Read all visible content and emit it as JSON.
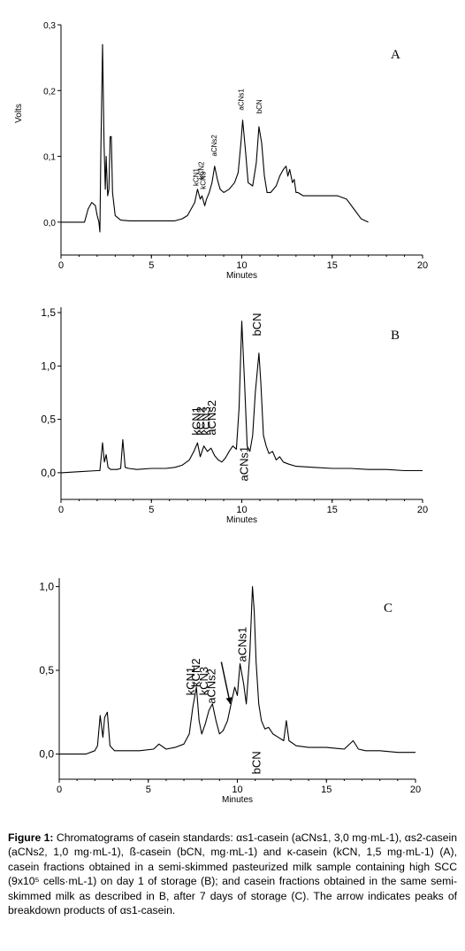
{
  "chart_data": [
    {
      "type": "line",
      "panel_label": "A",
      "xlabel": "Minutes",
      "ylabel": "Volts",
      "xlim": [
        0,
        20
      ],
      "ylim": [
        -0.05,
        0.3
      ],
      "x_ticks": [
        "0",
        "5",
        "10",
        "15",
        "20"
      ],
      "y_ticks": [
        "0,0",
        "0,1",
        "0,2",
        "0,3"
      ],
      "annotations": [
        {
          "text": "kCN1",
          "x": 7.6,
          "y": 0.055
        },
        {
          "text": "kCN2",
          "x": 7.9,
          "y": 0.065
        },
        {
          "text": "kCN3",
          "x": 8.0,
          "y": 0.05
        },
        {
          "text": "aCNs2",
          "x": 8.6,
          "y": 0.1
        },
        {
          "text": "aCNs1",
          "x": 10.1,
          "y": 0.17
        },
        {
          "text": "bCN",
          "x": 11.1,
          "y": 0.165
        }
      ],
      "series": [
        {
          "x": [
            0,
            1.3,
            1.5,
            1.7,
            1.9,
            2.0,
            2.1,
            2.15,
            2.2,
            2.3,
            2.38,
            2.45,
            2.5,
            2.58,
            2.65,
            2.72,
            2.78,
            2.85,
            3.0,
            3.3,
            3.8,
            4.5,
            5.5,
            6.3,
            6.7,
            7.0,
            7.2,
            7.4,
            7.55,
            7.7,
            7.8,
            7.95,
            8.05,
            8.2,
            8.35,
            8.5,
            8.65,
            8.8,
            9.0,
            9.3,
            9.6,
            9.8,
            9.95,
            10.05,
            10.2,
            10.35,
            10.6,
            10.8,
            10.95,
            11.1,
            11.25,
            11.4,
            11.6,
            11.9,
            12.1,
            12.3,
            12.45,
            12.55,
            12.65,
            12.8,
            12.9,
            13.0,
            13.1,
            13.4,
            13.7,
            14.5,
            15.3,
            15.8,
            16.2,
            16.6,
            17.0
          ],
          "y": [
            0.0,
            0.0,
            0.02,
            0.03,
            0.025,
            0.01,
            0.0,
            -0.015,
            0.1,
            0.27,
            0.12,
            0.05,
            0.1,
            0.04,
            0.05,
            0.13,
            0.13,
            0.045,
            0.01,
            0.003,
            0.002,
            0.002,
            0.002,
            0.002,
            0.005,
            0.01,
            0.02,
            0.03,
            0.05,
            0.035,
            0.04,
            0.025,
            0.035,
            0.045,
            0.06,
            0.085,
            0.065,
            0.05,
            0.045,
            0.05,
            0.06,
            0.075,
            0.12,
            0.155,
            0.11,
            0.06,
            0.055,
            0.09,
            0.145,
            0.12,
            0.07,
            0.045,
            0.045,
            0.055,
            0.07,
            0.08,
            0.085,
            0.07,
            0.08,
            0.06,
            0.065,
            0.045,
            0.045,
            0.04,
            0.04,
            0.04,
            0.04,
            0.035,
            0.02,
            0.005,
            0.0
          ]
        }
      ]
    },
    {
      "type": "line",
      "panel_label": "B",
      "xlabel": "Minutes",
      "xlim": [
        0,
        20
      ],
      "ylim": [
        -0.25,
        1.55
      ],
      "x_ticks": [
        "0",
        "5",
        "10",
        "15",
        "20"
      ],
      "y_ticks": [
        "0,0",
        "0,5",
        "1,0",
        "1,5"
      ],
      "annotations": [
        {
          "text": "kCN1",
          "x": 7.7,
          "y": 0.35
        },
        {
          "text": "kCN2",
          "x": 7.95,
          "y": 0.35
        },
        {
          "text": "kCN3",
          "x": 8.25,
          "y": 0.35
        },
        {
          "text": "aCNs2",
          "x": 8.55,
          "y": 0.35
        },
        {
          "text": "aCNs1",
          "x": 10.35,
          "y": -0.08
        },
        {
          "text": "bCN",
          "x": 11.05,
          "y": 1.28
        }
      ],
      "series": [
        {
          "x": [
            0,
            1.0,
            2.0,
            2.15,
            2.3,
            2.4,
            2.5,
            2.6,
            2.75,
            2.9,
            3.1,
            3.3,
            3.42,
            3.55,
            3.75,
            4.2,
            5.0,
            5.8,
            6.3,
            6.7,
            7.1,
            7.35,
            7.55,
            7.7,
            7.9,
            8.1,
            8.3,
            8.5,
            8.7,
            8.9,
            9.1,
            9.3,
            9.5,
            9.7,
            9.85,
            10.0,
            10.15,
            10.3,
            10.45,
            10.6,
            10.75,
            10.95,
            11.05,
            11.2,
            11.35,
            11.5,
            11.7,
            11.9,
            12.1,
            12.3,
            12.6,
            13.0,
            14.0,
            15.0,
            16.0,
            17.0,
            18.0,
            19.0,
            20.0
          ],
          "y": [
            0.0,
            0.01,
            0.02,
            0.02,
            0.28,
            0.1,
            0.17,
            0.05,
            0.03,
            0.03,
            0.03,
            0.04,
            0.31,
            0.05,
            0.04,
            0.03,
            0.04,
            0.04,
            0.05,
            0.07,
            0.12,
            0.2,
            0.28,
            0.15,
            0.25,
            0.2,
            0.23,
            0.16,
            0.12,
            0.1,
            0.14,
            0.2,
            0.25,
            0.22,
            0.6,
            1.42,
            0.85,
            0.25,
            0.2,
            0.35,
            0.75,
            1.12,
            0.85,
            0.35,
            0.25,
            0.18,
            0.2,
            0.12,
            0.15,
            0.1,
            0.08,
            0.06,
            0.05,
            0.04,
            0.04,
            0.03,
            0.03,
            0.02,
            0.02
          ]
        }
      ]
    },
    {
      "type": "line",
      "panel_label": "C",
      "xlabel": "Minutes",
      "xlim": [
        0,
        20
      ],
      "ylim": [
        -0.15,
        1.05
      ],
      "x_ticks": [
        "0",
        "5",
        "10",
        "15",
        "20"
      ],
      "y_ticks": [
        "0,0",
        "0,5",
        "1,0"
      ],
      "annotations": [
        {
          "text": "kCN1",
          "x": 7.6,
          "y": 0.35
        },
        {
          "text": "kCN2",
          "x": 7.9,
          "y": 0.4
        },
        {
          "text": "kCN3",
          "x": 8.35,
          "y": 0.35
        },
        {
          "text": "aCNs2",
          "x": 8.75,
          "y": 0.3
        },
        {
          "text": "aCNs1",
          "x": 10.5,
          "y": 0.55
        },
        {
          "text": "bCN",
          "x": 11.3,
          "y": -0.12
        }
      ],
      "series": [
        {
          "x": [
            0,
            1.5,
            2.0,
            2.15,
            2.3,
            2.45,
            2.55,
            2.7,
            2.85,
            3.1,
            3.5,
            4.5,
            5.3,
            5.6,
            6.0,
            6.5,
            7.0,
            7.3,
            7.5,
            7.7,
            7.85,
            8.0,
            8.2,
            8.4,
            8.6,
            8.8,
            9.0,
            9.2,
            9.45,
            9.65,
            9.85,
            10.0,
            10.15,
            10.35,
            10.5,
            10.7,
            10.85,
            10.95,
            11.05,
            11.2,
            11.35,
            11.55,
            11.75,
            12.0,
            12.3,
            12.6,
            12.75,
            12.9,
            13.3,
            14.0,
            15.0,
            16.0,
            16.5,
            16.8,
            17.2,
            18.0,
            19.0,
            20.0
          ],
          "y": [
            0.0,
            0.0,
            0.02,
            0.05,
            0.23,
            0.1,
            0.22,
            0.25,
            0.05,
            0.02,
            0.02,
            0.02,
            0.03,
            0.06,
            0.03,
            0.04,
            0.06,
            0.12,
            0.28,
            0.4,
            0.2,
            0.12,
            0.18,
            0.26,
            0.3,
            0.2,
            0.12,
            0.14,
            0.2,
            0.3,
            0.4,
            0.35,
            0.54,
            0.42,
            0.3,
            0.6,
            1.0,
            0.85,
            0.55,
            0.3,
            0.2,
            0.15,
            0.16,
            0.12,
            0.1,
            0.08,
            0.2,
            0.08,
            0.05,
            0.04,
            0.04,
            0.03,
            0.08,
            0.03,
            0.02,
            0.02,
            0.01,
            0.01
          ]
        }
      ],
      "arrow": {
        "from": [
          9.1,
          0.55
        ],
        "to": [
          9.6,
          0.3
        ]
      }
    }
  ],
  "caption": {
    "label": "Figure 1:",
    "text": "Chromatograms of casein standards: αs1-casein (aCNs1, 3,0 mg·mL-1), αs2-casein (aCNs2, 1,0 mg·mL-1), ß-casein (bCN, mg·mL-1) and κ-casein (kCN, 1,5 mg·mL-1) (A), casein fractions obtained in a semi-skimmed pasteurized milk sample containing high SCC (9x10⁵ cells·mL-1) on day 1 of storage (B); and casein fractions obtained in the same semi-skimmed milk as described in B, after 7 days of storage (C). The arrow indicates peaks of breakdown products of αs1-casein."
  },
  "colors": {
    "trace": "#000000",
    "axis": "#000000",
    "background": "#ffffff"
  }
}
